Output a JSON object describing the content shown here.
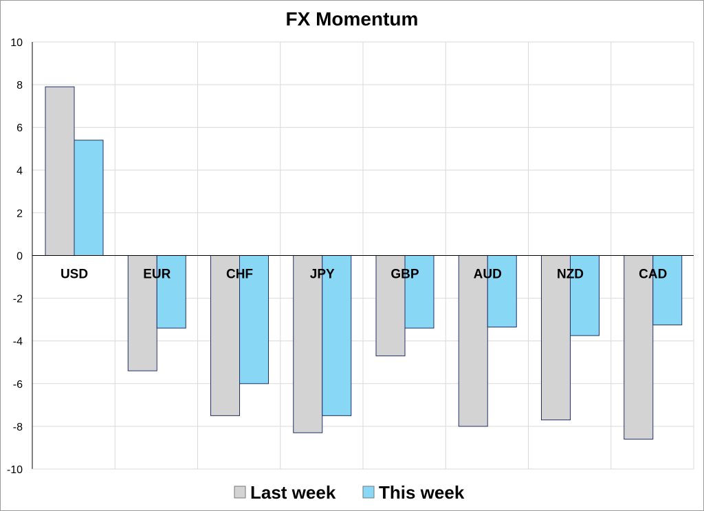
{
  "chart_data": {
    "type": "bar",
    "title": "FX Momentum",
    "xlabel": "",
    "ylabel": "",
    "ylim": [
      -10,
      10
    ],
    "yticks": [
      10,
      8,
      6,
      4,
      2,
      0,
      -2,
      -4,
      -6,
      -8,
      -10
    ],
    "grid": true,
    "legend_position": "bottom",
    "categories": [
      "USD",
      "EUR",
      "CHF",
      "JPY",
      "GBP",
      "AUD",
      "NZD",
      "CAD"
    ],
    "series": [
      {
        "name": "Last week",
        "color": "#d3d3d3",
        "values": [
          7.9,
          -5.4,
          -7.5,
          -8.3,
          -4.7,
          -8.0,
          -7.7,
          -8.6
        ]
      },
      {
        "name": "This week",
        "color": "#87d7f5",
        "values": [
          5.4,
          -3.4,
          -6.0,
          -7.5,
          -3.4,
          -3.35,
          -3.75,
          -3.25
        ]
      }
    ],
    "bar_stroke": "#1f2f6b"
  }
}
